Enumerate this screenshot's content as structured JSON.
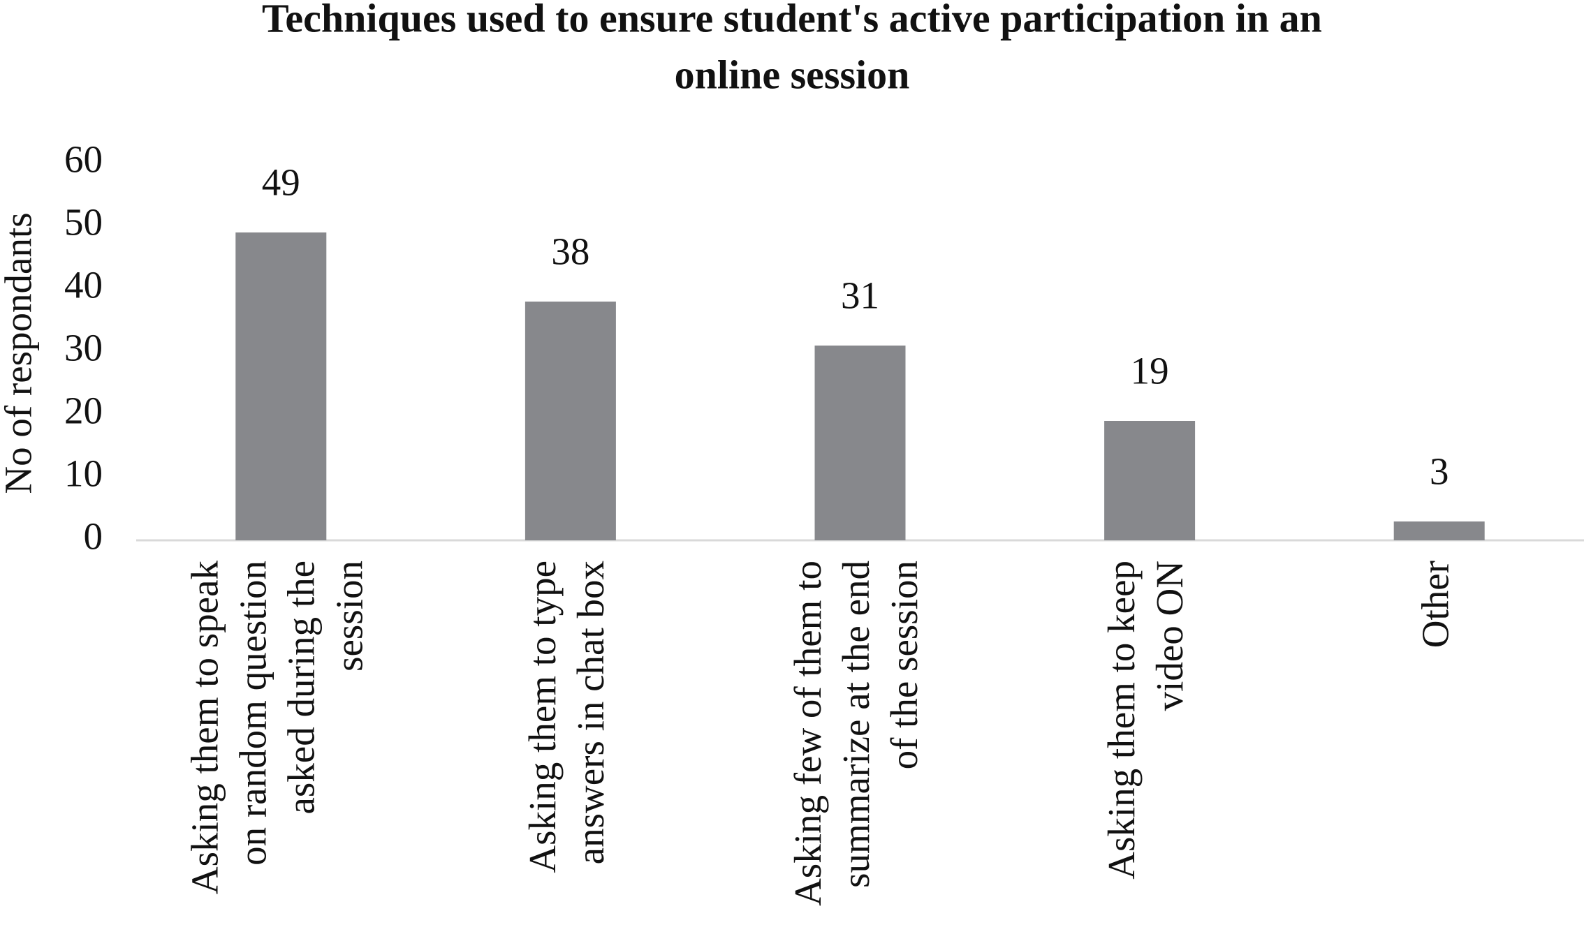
{
  "chart_data": {
    "type": "bar",
    "title": [
      "Techniques used to ensure student's active participation in an",
      "online session"
    ],
    "y_label": "No of respondants",
    "categories": [
      [
        "Asking them to speak",
        "on random question",
        "asked during the",
        "session"
      ],
      [
        "Asking them to type",
        "answers in chat box"
      ],
      [
        "Asking few of them to",
        "summarize at the end",
        "of the session"
      ],
      [
        "Asking them to keep",
        "video ON"
      ],
      [
        "Other"
      ]
    ],
    "values": [
      49,
      38,
      31,
      19,
      3
    ],
    "color": "#87888c",
    "ylim": [
      0,
      60
    ],
    "yticks": [
      0,
      10,
      20,
      30,
      40,
      50,
      60
    ],
    "grid": false
  }
}
